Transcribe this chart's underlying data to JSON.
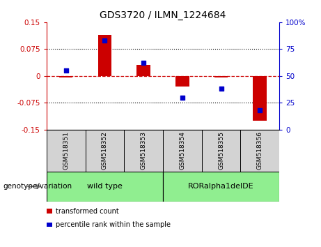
{
  "title": "GDS3720 / ILMN_1224684",
  "samples": [
    "GSM518351",
    "GSM518352",
    "GSM518353",
    "GSM518354",
    "GSM518355",
    "GSM518356"
  ],
  "transformed_count": [
    -0.005,
    0.115,
    0.03,
    -0.03,
    -0.005,
    -0.125
  ],
  "percentile_rank": [
    55,
    83,
    62,
    30,
    38,
    18
  ],
  "ylim_left": [
    -0.15,
    0.15
  ],
  "ylim_right": [
    0,
    100
  ],
  "yticks_left": [
    -0.15,
    -0.075,
    0,
    0.075,
    0.15
  ],
  "yticks_right": [
    0,
    25,
    50,
    75,
    100
  ],
  "ytick_labels_left": [
    "-0.15",
    "-0.075",
    "0",
    "0.075",
    "0.15"
  ],
  "ytick_labels_right": [
    "0",
    "25",
    "50",
    "75",
    "100%"
  ],
  "left_axis_color": "#cc0000",
  "right_axis_color": "#0000cc",
  "bar_color": "#cc0000",
  "dot_color": "#0000cc",
  "zero_line_color": "#cc0000",
  "grid_color": "#000000",
  "legend1": "transformed count",
  "legend2": "percentile rank within the sample",
  "genotype_label": "genotype/variation",
  "group1_label": "wild type",
  "group2_label": "RORalpha1delDE",
  "group_color": "#90EE90",
  "sample_box_color": "#d3d3d3",
  "bar_width": 0.35
}
